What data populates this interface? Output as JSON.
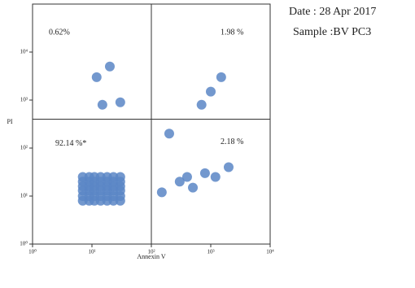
{
  "chart_data": {
    "type": "scatter",
    "xlabel": "Annexin V",
    "ylabel": "PI",
    "log_x": true,
    "log_y": true,
    "xlim": [
      1,
      10000
    ],
    "ylim": [
      1,
      100000
    ],
    "xticks": [
      {
        "value": 1,
        "label": "10⁰"
      },
      {
        "value": 10,
        "label": "10¹"
      },
      {
        "value": 100,
        "label": "10²"
      },
      {
        "value": 1000,
        "label": "10³"
      },
      {
        "value": 10000,
        "label": "10⁴"
      }
    ],
    "yticks": [
      {
        "value": 1,
        "label": "10⁰"
      },
      {
        "value": 10,
        "label": "10¹"
      },
      {
        "value": 100,
        "label": "10²"
      },
      {
        "value": 1000,
        "label": "10³"
      },
      {
        "value": 10000,
        "label": "10⁴"
      }
    ],
    "gate": {
      "x": 100,
      "y": 400
    },
    "quadrants": [
      {
        "label": "0.62%",
        "value": 0.62
      },
      {
        "label": "1.98 %",
        "value": 1.98
      },
      {
        "label": "92.14 %*",
        "value": 92.14
      },
      {
        "label": "2.18 %",
        "value": 2.18
      }
    ],
    "series": [
      {
        "color": "#5b86c5",
        "x": [
          7,
          9,
          11,
          14,
          18,
          23,
          30,
          7,
          9,
          11,
          14,
          18,
          23,
          30,
          7,
          9,
          11,
          14,
          18,
          23,
          30,
          7,
          9,
          11,
          14,
          18,
          23,
          30,
          7,
          9,
          11,
          14,
          18,
          23,
          30,
          7,
          9,
          11,
          14,
          18,
          23,
          30,
          150,
          300,
          500,
          800,
          1200,
          2000,
          700,
          1000,
          1500,
          30,
          15,
          12,
          20,
          200,
          400
        ],
        "y": [
          8,
          8,
          8,
          8,
          8,
          8,
          8,
          10,
          10,
          10,
          10,
          10,
          10,
          10,
          13,
          13,
          13,
          13,
          13,
          13,
          13,
          16,
          16,
          16,
          16,
          16,
          16,
          16,
          20,
          20,
          20,
          20,
          20,
          20,
          20,
          25,
          25,
          25,
          25,
          25,
          25,
          25,
          12,
          20,
          15,
          30,
          25,
          40,
          800,
          1500,
          3000,
          900,
          800,
          3000,
          5000,
          200,
          25
        ]
      }
    ]
  },
  "info": {
    "date": "Date : 28 Apr 2017",
    "sample": "Sample :BV  PC3"
  }
}
